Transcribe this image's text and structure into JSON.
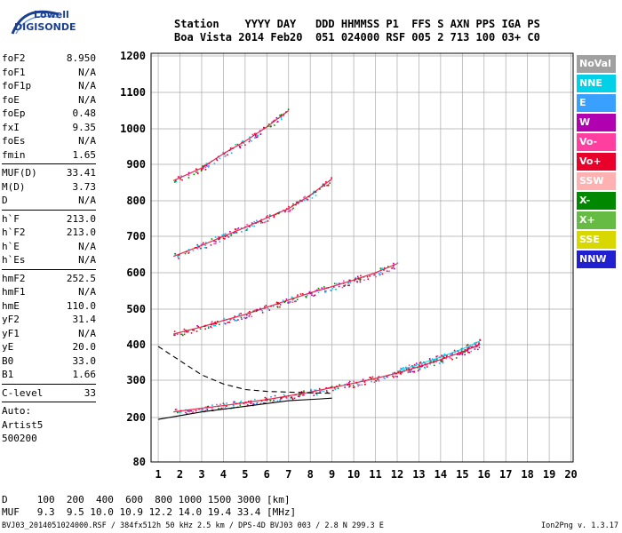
{
  "logo": {
    "top": "Lowell",
    "bottom": "DIGISONDE"
  },
  "header": {
    "line1": "Station    YYYY DAY   DDD HHMMSS P1  FFS S AXN PPS IGA PS",
    "line2": "Boa Vista 2014 Feb20  051 024000 RSF 005 2 713 100 03+ C0"
  },
  "params": [
    [
      [
        "foF2",
        "8.950"
      ],
      [
        "foF1",
        "N/A"
      ],
      [
        "foF1p",
        "N/A"
      ],
      [
        "foE",
        "N/A"
      ],
      [
        "foEp",
        "0.48"
      ],
      [
        "fxI",
        "9.35"
      ],
      [
        "foEs",
        "N/A"
      ],
      [
        "fmin",
        "1.65"
      ]
    ],
    [
      [
        "MUF(D)",
        "33.41"
      ],
      [
        "M(D)",
        "3.73"
      ],
      [
        "D",
        "N/A"
      ]
    ],
    [
      [
        "h`F",
        "213.0"
      ],
      [
        "h`F2",
        "213.0"
      ],
      [
        "h`E",
        "N/A"
      ],
      [
        "h`Es",
        "N/A"
      ]
    ],
    [
      [
        "hmF2",
        "252.5"
      ],
      [
        "hmF1",
        "N/A"
      ],
      [
        "hmE",
        "110.0"
      ],
      [
        "yF2",
        "31.4"
      ],
      [
        "yF1",
        "N/A"
      ],
      [
        "yE",
        "20.0"
      ],
      [
        "B0",
        "33.0"
      ],
      [
        "B1",
        "1.66"
      ]
    ],
    [
      [
        "C-level",
        "33"
      ]
    ]
  ],
  "autoscale": {
    "line1": "Auto:",
    "line2": "Artist5",
    "line3": "500200"
  },
  "legend": [
    {
      "label": "NoVal",
      "color": "#a0a0a0"
    },
    {
      "label": "NNE",
      "color": "#00d0e8"
    },
    {
      "label": "E",
      "color": "#3aa0ff"
    },
    {
      "label": "W",
      "color": "#b000b0"
    },
    {
      "label": "Vo-",
      "color": "#ff3fa0"
    },
    {
      "label": "Vo+",
      "color": "#e8002a"
    },
    {
      "label": "SSW",
      "color": "#ffb0b0"
    },
    {
      "label": "X-",
      "color": "#008800"
    },
    {
      "label": "X+",
      "color": "#66bb44"
    },
    {
      "label": "SSE",
      "color": "#d8d800"
    },
    {
      "label": "NNW",
      "color": "#2020d0"
    }
  ],
  "footer": {
    "d_row": "D     100  200  400  600  800 1000 1500 3000 [km]",
    "muf_row": "MUF   9.3  9.5 10.0 10.9 12.2 14.0 19.4 33.4 [MHz]",
    "file_line": "BVJ03_2014051024000.RSF / 384fx512h 50 kHz 2.5 km / DPS-4D BVJ03 003 / 2.8 N 299.3 E",
    "version": "Ion2Png v. 1.3.17"
  },
  "chart_data": {
    "type": "scatter",
    "x_ticks": [
      "1",
      "2",
      "3",
      "4",
      "5",
      "6",
      "7",
      "8",
      "9",
      "10",
      "11",
      "12",
      "13",
      "14",
      "15",
      "16",
      "17",
      "18",
      "19",
      "20"
    ],
    "y_ticks": [
      "80",
      "200",
      "300",
      "400",
      "500",
      "600",
      "700",
      "800",
      "900",
      "1000",
      "1100",
      "1200"
    ],
    "xlim": [
      1,
      20
    ],
    "ylim": [
      80,
      1200
    ],
    "grid": true,
    "legend_placement": "right",
    "traces": [
      {
        "name": "Vo+",
        "x": [
          1.7,
          3,
          4,
          5,
          6,
          7,
          8,
          9,
          10,
          11,
          12,
          13,
          14,
          15,
          15.8
        ],
        "y": [
          215,
          225,
          232,
          240,
          248,
          258,
          268,
          280,
          292,
          305,
          320,
          338,
          358,
          380,
          400
        ]
      },
      {
        "name": "NNE",
        "x": [
          12,
          13,
          14,
          15,
          15.8
        ],
        "y": [
          325,
          345,
          365,
          388,
          410
        ]
      },
      {
        "name": "Vo+",
        "x": [
          1.7,
          3,
          4,
          5,
          6,
          7,
          8,
          9,
          10,
          11,
          12
        ],
        "y": [
          430,
          450,
          468,
          485,
          505,
          525,
          545,
          562,
          580,
          600,
          625
        ]
      },
      {
        "name": "Vo+",
        "x": [
          1.7,
          3,
          4,
          5,
          6,
          7,
          8,
          9
        ],
        "y": [
          645,
          675,
          700,
          725,
          752,
          778,
          815,
          860
        ]
      },
      {
        "name": "Vo+",
        "x": [
          1.7,
          3,
          4,
          5,
          6,
          7
        ],
        "y": [
          855,
          890,
          930,
          965,
          1005,
          1050
        ]
      }
    ],
    "model_curves": [
      {
        "style": "solid",
        "x": [
          1,
          3,
          5,
          7,
          8.5,
          9
        ],
        "y": [
          195,
          215,
          230,
          245,
          250,
          252
        ]
      },
      {
        "style": "dashed",
        "x": [
          1,
          2,
          3,
          4,
          5,
          6,
          7,
          8,
          9
        ],
        "y": [
          395,
          355,
          315,
          290,
          275,
          270,
          268,
          266,
          265
        ]
      }
    ]
  }
}
